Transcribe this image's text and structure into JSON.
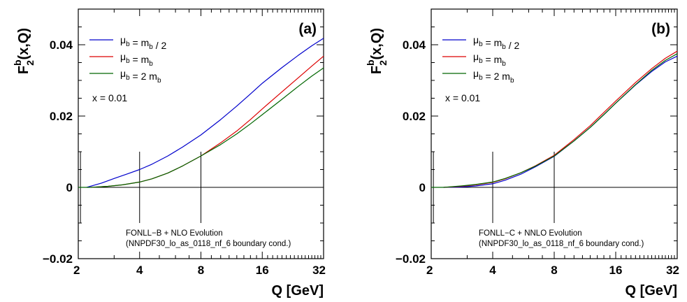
{
  "chart_data": [
    {
      "type": "line",
      "panel_label": "(a)",
      "xlabel": "Q [GeV]",
      "ylabel": "F2b(x,Q)",
      "x_scale": "log2",
      "xlim": [
        2,
        32
      ],
      "ylim": [
        -0.02,
        0.05
      ],
      "x_ticks": [
        "2",
        "4",
        "8",
        "16",
        "32"
      ],
      "y_ticks": [
        "−0.02",
        "0",
        "0.02",
        "0.04"
      ],
      "x_value_text": "x = 0.01",
      "note_line1": "FONLL−B + NLO Evolution",
      "note_line2": "(NNPDF30_lo_as_0118_nf_6 boundary cond.)",
      "legend_position": "top-left",
      "series": [
        {
          "name": "μb = mb / 2",
          "color": "#0000cc",
          "x": [
            2.2,
            2.6,
            3.0,
            3.5,
            4.0,
            4.6,
            5.5,
            6.5,
            8.0,
            10,
            12,
            14,
            16,
            20,
            24,
            28,
            32
          ],
          "y": [
            0.0,
            0.0012,
            0.0025,
            0.0038,
            0.005,
            0.0065,
            0.0088,
            0.0113,
            0.0147,
            0.019,
            0.0228,
            0.0262,
            0.0292,
            0.0336,
            0.037,
            0.0397,
            0.0418
          ]
        },
        {
          "name": "μb = mb",
          "color": "#dd0000",
          "x": [
            2.3,
            2.8,
            3.3,
            4.0,
            4.6,
            5.5,
            6.5,
            8.0,
            10,
            12,
            14,
            16,
            20,
            24,
            28,
            32
          ],
          "y": [
            0.0,
            0.0003,
            0.0007,
            0.0015,
            0.0024,
            0.004,
            0.006,
            0.0088,
            0.0125,
            0.0158,
            0.019,
            0.022,
            0.0268,
            0.0307,
            0.034,
            0.0368
          ]
        },
        {
          "name": "μb = 2 mb",
          "color": "#006600",
          "x": [
            2.3,
            2.8,
            3.3,
            4.0,
            4.6,
            5.5,
            6.5,
            8.0,
            10,
            12,
            14,
            16,
            20,
            24,
            28,
            32
          ],
          "y": [
            0.0,
            0.0003,
            0.0007,
            0.0015,
            0.0024,
            0.004,
            0.006,
            0.0088,
            0.012,
            0.015,
            0.0178,
            0.0204,
            0.0247,
            0.0283,
            0.0312,
            0.0335
          ]
        }
      ]
    },
    {
      "type": "line",
      "panel_label": "(b)",
      "xlabel": "Q [GeV]",
      "ylabel": "F2b(x,Q)",
      "x_scale": "log2",
      "xlim": [
        2,
        32
      ],
      "ylim": [
        -0.02,
        0.05
      ],
      "x_ticks": [
        "2",
        "4",
        "8",
        "16",
        "32"
      ],
      "y_ticks": [
        "−0.02",
        "0",
        "0.02",
        "0.04"
      ],
      "x_value_text": "x = 0.01",
      "note_line1": "FONLL−C + NNLO Evolution",
      "note_line2": "(NNPDF30_lo_as_0118_nf_6 boundary cond.)",
      "legend_position": "top-left",
      "series": [
        {
          "name": "μb = mb / 2",
          "color": "#0000cc",
          "x": [
            2.3,
            2.8,
            3.3,
            4.0,
            4.6,
            5.5,
            6.5,
            8.0,
            10,
            12,
            14,
            16,
            20,
            24,
            28,
            32
          ],
          "y": [
            0.0,
            0.0001,
            0.0004,
            0.001,
            0.002,
            0.0037,
            0.0058,
            0.0087,
            0.013,
            0.0168,
            0.0204,
            0.0236,
            0.0287,
            0.0325,
            0.0352,
            0.0368
          ]
        },
        {
          "name": "μb = mb",
          "color": "#dd0000",
          "x": [
            2.3,
            2.8,
            3.3,
            4.0,
            4.6,
            5.5,
            6.5,
            8.0,
            10,
            12,
            14,
            16,
            20,
            24,
            28,
            32
          ],
          "y": [
            0.0,
            0.0003,
            0.0007,
            0.0014,
            0.0024,
            0.0041,
            0.0061,
            0.009,
            0.0134,
            0.0173,
            0.021,
            0.0242,
            0.0294,
            0.0333,
            0.0362,
            0.0382
          ]
        },
        {
          "name": "μb = 2 mb",
          "color": "#006600",
          "x": [
            2.3,
            2.8,
            3.3,
            4.0,
            4.6,
            5.5,
            6.5,
            8.0,
            10,
            12,
            14,
            16,
            20,
            24,
            28,
            32
          ],
          "y": [
            0.0,
            0.0004,
            0.0008,
            0.0015,
            0.0025,
            0.0041,
            0.006,
            0.0088,
            0.013,
            0.0168,
            0.0204,
            0.0236,
            0.0288,
            0.0328,
            0.0356,
            0.0375
          ]
        }
      ]
    }
  ]
}
